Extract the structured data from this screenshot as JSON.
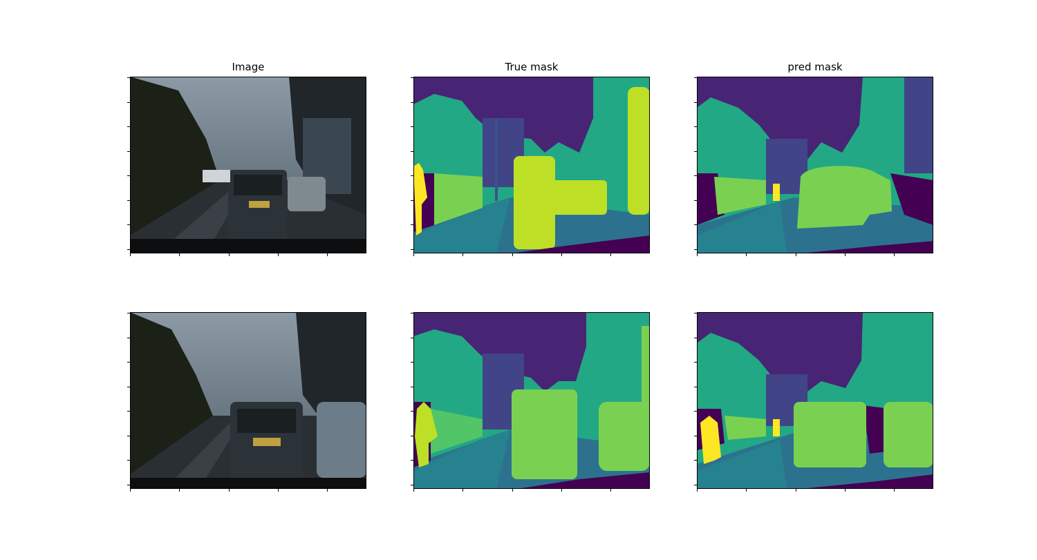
{
  "titles": {
    "image": "Image",
    "true_mask": "True mask",
    "pred_mask": "pred mask"
  },
  "rows": [
    {
      "image_scene": "street-scene-row-1",
      "true_mask_scene": "segmentation-mask-row-1",
      "pred_mask_scene": "prediction-mask-row-1"
    },
    {
      "image_scene": "street-scene-row-2",
      "true_mask_scene": "segmentation-mask-row-2",
      "pred_mask_scene": "prediction-mask-row-2"
    }
  ],
  "colors": {
    "sky": "#482475",
    "tree": "#22a884",
    "tree_dark": "#2a788e",
    "road": "#2c728e",
    "pavement": "#414487",
    "building": "#26828e",
    "car": "#bddf26",
    "car_pred": "#7ad151",
    "person": "#fde725",
    "fence": "#7ad151",
    "void": "#440154",
    "pole": "#3b528b"
  }
}
